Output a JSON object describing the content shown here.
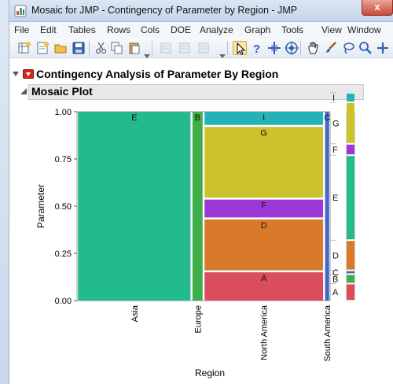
{
  "window": {
    "title": "Mosaic for JMP - Contingency of Parameter by Region - JMP",
    "close_label": "x"
  },
  "menu": [
    "File",
    "Edit",
    "Tables",
    "Rows",
    "Cols",
    "DOE",
    "Analyze",
    "Graph",
    "Tools",
    "View",
    "Window"
  ],
  "toolbar_icons": [
    "new-data-table-icon",
    "new-script-icon",
    "open-icon",
    "save-icon",
    "cut-icon",
    "copy-icon",
    "paste-icon",
    "disabled-icon",
    "disabled-icon",
    "disabled-icon",
    "arrow-icon",
    "help-icon",
    "crosshair-icon",
    "target-icon",
    "hand-icon",
    "brush-icon",
    "lasso-icon",
    "magnifier-icon",
    "plus-icon"
  ],
  "report": {
    "outline_title": "Contingency Analysis of Parameter By Region",
    "section_title": "Mosaic Plot"
  },
  "chart_data": {
    "type": "mosaic",
    "xlabel": "Region",
    "ylabel": "Parameter",
    "ylim": [
      0,
      1
    ],
    "yticks": [
      "0.00",
      "0.25",
      "0.50",
      "0.75",
      "1.00"
    ],
    "colors": {
      "A": "#d94d5c",
      "B": "#3fae49",
      "C": "#4666c8",
      "D": "#d87a2a",
      "E": "#24bb8c",
      "F": "#9e37d8",
      "G": "#ccc22b",
      "I": "#22b3b8"
    },
    "columns": [
      {
        "name": "Asia",
        "width": 0.4524,
        "segments": [
          {
            "level": "E",
            "value": 1.0
          }
        ]
      },
      {
        "name": "Europe",
        "width": 0.0476,
        "segments": [
          {
            "level": "B",
            "value": 1.0
          }
        ]
      },
      {
        "name": "North America",
        "width": 0.4762,
        "segments": [
          {
            "level": "A",
            "value": 0.155
          },
          {
            "level": "D",
            "value": 0.28
          },
          {
            "level": "F",
            "value": 0.105
          },
          {
            "level": "G",
            "value": 0.385
          },
          {
            "level": "I",
            "value": 0.075
          }
        ]
      },
      {
        "name": "South America",
        "width": 0.0238,
        "segments": [
          {
            "level": "C",
            "value": 1.0
          }
        ]
      }
    ],
    "marginal": [
      {
        "level": "A",
        "value": 0.09
      },
      {
        "level": "B",
        "value": 0.05
      },
      {
        "level": "C",
        "value": 0.02
      },
      {
        "level": "D",
        "value": 0.16
      },
      {
        "level": "E",
        "value": 0.45
      },
      {
        "level": "F",
        "value": 0.06
      },
      {
        "level": "G",
        "value": 0.22
      },
      {
        "level": "I",
        "value": 0.05
      }
    ]
  }
}
